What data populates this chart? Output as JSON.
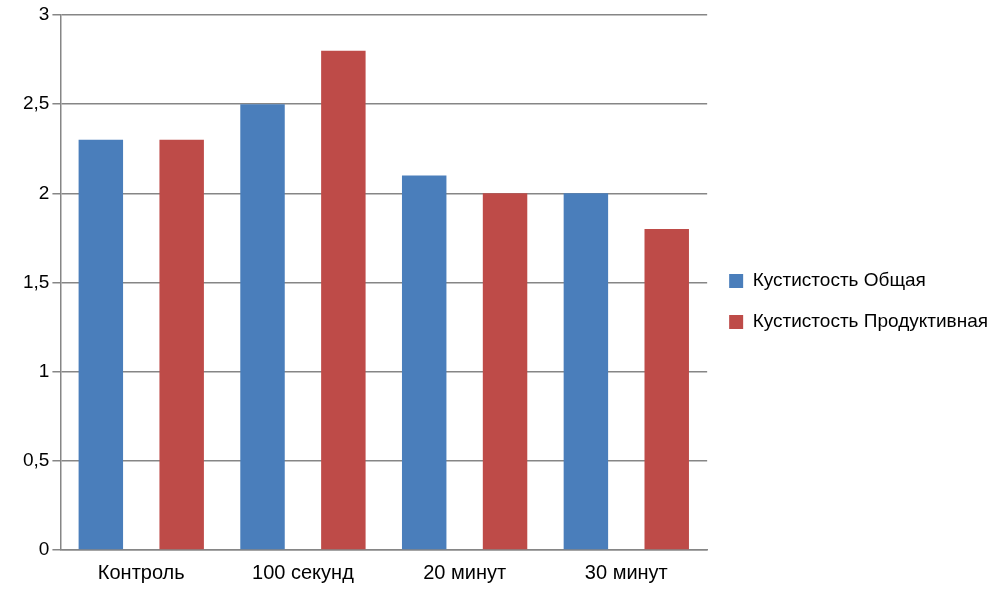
{
  "chart_data": {
    "type": "bar",
    "categories": [
      "Контроль",
      "100 секунд",
      "20 минут",
      "30 минут"
    ],
    "series": [
      {
        "name": "Кустистость Общая",
        "color": "#4a7ebb",
        "values": [
          2.3,
          2.5,
          2.1,
          2.0
        ]
      },
      {
        "name": "Кустистость Продуктивная",
        "color": "#be4b48",
        "values": [
          2.3,
          2.8,
          2.0,
          1.8
        ]
      }
    ],
    "ylim": [
      0,
      3
    ],
    "yticks": [
      {
        "value": 0,
        "label": "0"
      },
      {
        "value": 0.5,
        "label": "0,5"
      },
      {
        "value": 1,
        "label": "1"
      },
      {
        "value": 1.5,
        "label": "1,5"
      },
      {
        "value": 2,
        "label": "2"
      },
      {
        "value": 2.5,
        "label": "2,5"
      },
      {
        "value": 3,
        "label": "3"
      }
    ],
    "grid": "y",
    "legend": "right"
  }
}
